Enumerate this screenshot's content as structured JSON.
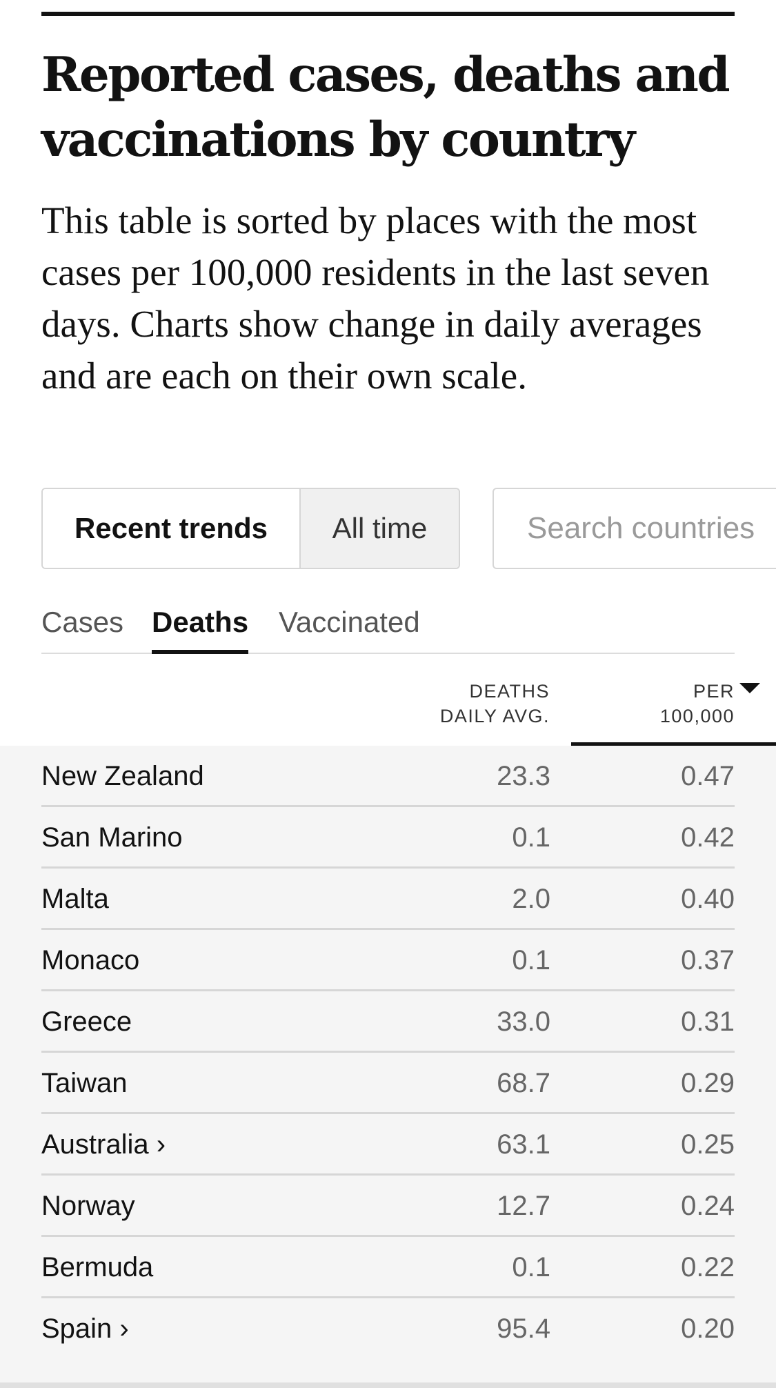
{
  "title": "Reported cases, deaths and vaccinations by country",
  "description": "This table is sorted by places with the most cases per 100,000 residents in the last seven days. Charts show change in daily averages and are each on their own scale.",
  "view_toggle": {
    "recent_label": "Recent trends",
    "all_time_label": "All time",
    "selected": "Recent trends"
  },
  "search": {
    "placeholder": "Search countries",
    "value": ""
  },
  "metric_tabs": {
    "items": [
      "Cases",
      "Deaths",
      "Vaccinated"
    ],
    "selected": "Deaths"
  },
  "columns": {
    "deaths_line1": "DEATHS",
    "deaths_line2": "DAILY AVG.",
    "per_line1": "PER",
    "per_line2": "100,000",
    "sorted_by": "PER 100,000",
    "sort_direction": "descending"
  },
  "rows": [
    {
      "country": "New Zealand",
      "deaths_daily_avg": "23.3",
      "per_100000": "0.47"
    },
    {
      "country": "San Marino",
      "deaths_daily_avg": "0.1",
      "per_100000": "0.42"
    },
    {
      "country": "Malta",
      "deaths_daily_avg": "2.0",
      "per_100000": "0.40"
    },
    {
      "country": "Monaco",
      "deaths_daily_avg": "0.1",
      "per_100000": "0.37"
    },
    {
      "country": "Greece",
      "deaths_daily_avg": "33.0",
      "per_100000": "0.31"
    },
    {
      "country": "Taiwan",
      "deaths_daily_avg": "68.7",
      "per_100000": "0.29"
    },
    {
      "country": "Australia ›",
      "deaths_daily_avg": "63.1",
      "per_100000": "0.25"
    },
    {
      "country": "Norway",
      "deaths_daily_avg": "12.7",
      "per_100000": "0.24"
    },
    {
      "country": "Bermuda",
      "deaths_daily_avg": "0.1",
      "per_100000": "0.22"
    },
    {
      "country": "Spain ›",
      "deaths_daily_avg": "95.4",
      "per_100000": "0.20"
    }
  ],
  "colors": {
    "text": "#121212",
    "muted_value": "#666666",
    "table_background": "#f5f5f5",
    "inactive_toggle_background": "#f0f0f0",
    "border": "#d6d6d6"
  }
}
